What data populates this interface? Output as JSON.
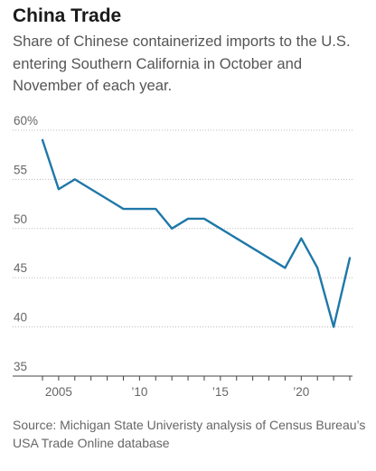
{
  "chart_data": {
    "type": "line",
    "title": "China Trade",
    "subtitle": "Share of Chinese containerized imports to the U.S. entering Southern California in October and November of each year.",
    "source": "Source: Michigan State Univeristy analysis of Census Bureau’s USA Trade Online database",
    "x": [
      2004,
      2005,
      2006,
      2007,
      2008,
      2009,
      2010,
      2011,
      2012,
      2013,
      2014,
      2015,
      2016,
      2017,
      2018,
      2019,
      2020,
      2021,
      2022,
      2023
    ],
    "series": [
      {
        "values": [
          59,
          54,
          55,
          54,
          53,
          52,
          52,
          52,
          50,
          51,
          51,
          50,
          49,
          48,
          47,
          46,
          49,
          46,
          40,
          47
        ],
        "color": "#1f78a8"
      }
    ],
    "y_ticks": [
      {
        "value": 60,
        "label": "60%"
      },
      {
        "value": 55,
        "label": "55"
      },
      {
        "value": 50,
        "label": "50"
      },
      {
        "value": 45,
        "label": "45"
      },
      {
        "value": 40,
        "label": "40"
      },
      {
        "value": 35,
        "label": "35"
      }
    ],
    "x_ticks": [
      {
        "value": 2005,
        "label": "2005"
      },
      {
        "value": 2010,
        "label": "’10"
      },
      {
        "value": 2015,
        "label": "’15"
      },
      {
        "value": 2020,
        "label": "’20"
      }
    ],
    "ylim": [
      35,
      60
    ],
    "xlim": [
      2003.2,
      2023.3
    ],
    "grid": "horizontal",
    "grid_style": "dotted",
    "xlabel": "",
    "ylabel": ""
  }
}
